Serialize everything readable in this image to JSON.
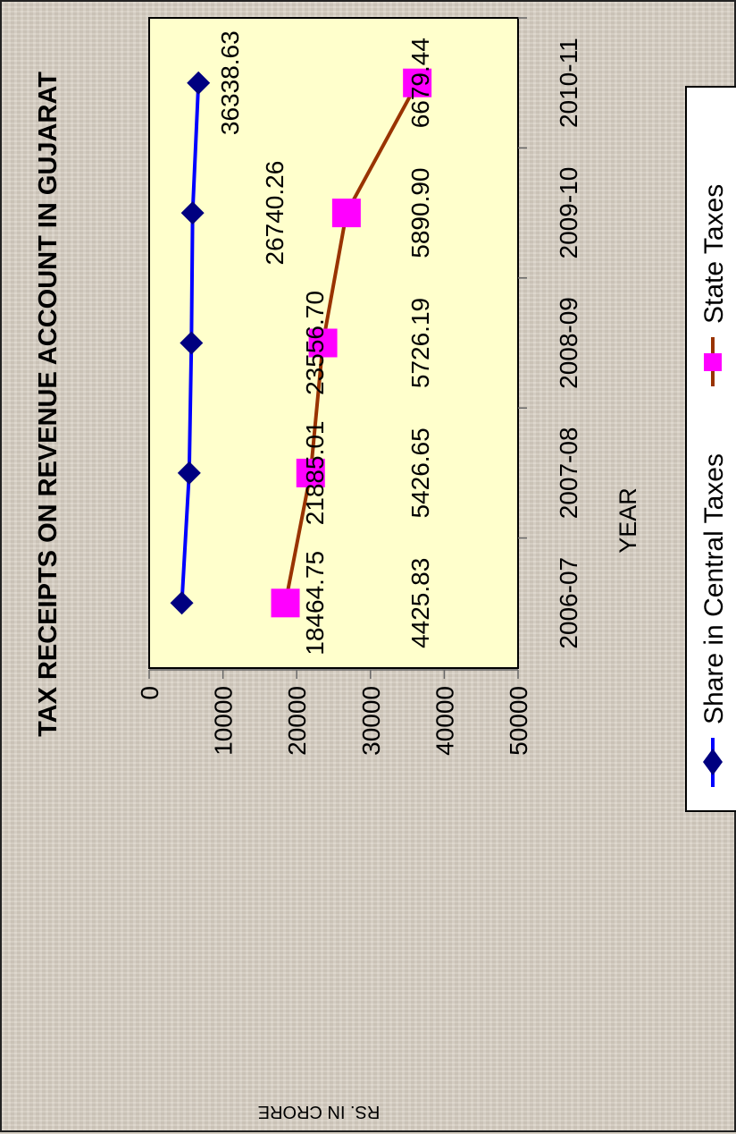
{
  "chart_data": {
    "type": "line",
    "title": "TAX RECEIPTS ON REVENUE ACCOUNT IN  GUJARAT",
    "xlabel": "YEAR",
    "ylabel": "RS. IN CRORE",
    "categories": [
      "2006-07",
      "2007-08",
      "2008-09",
      "2009-10",
      "2010-11"
    ],
    "yticks": [
      "0",
      "10000",
      "20000",
      "30000",
      "40000",
      "50000"
    ],
    "ylim": [
      0,
      50000
    ],
    "series": [
      {
        "name": "Share in  Central Taxes",
        "values": [
          4425.83,
          5426.65,
          5726.19,
          5890.9,
          6679.44
        ],
        "labels": [
          "4425.83",
          "5426.65",
          "5726.19",
          "5890.90",
          "6679.44"
        ],
        "color": "#0000ff",
        "marker_color": "#000080",
        "marker": "diamond"
      },
      {
        "name": "State  Taxes",
        "values": [
          18464.75,
          21885.01,
          23556.7,
          26740.26,
          36338.63
        ],
        "labels": [
          "18464.75",
          "21885.01",
          "23556.70",
          "26740.26",
          "36338.63"
        ],
        "color": "#993300",
        "marker_color": "#ff00ff",
        "marker": "square"
      }
    ],
    "legend_position": "bottom",
    "plot_background": "#ffffcc",
    "orientation": "rotated-90-clockwise"
  }
}
